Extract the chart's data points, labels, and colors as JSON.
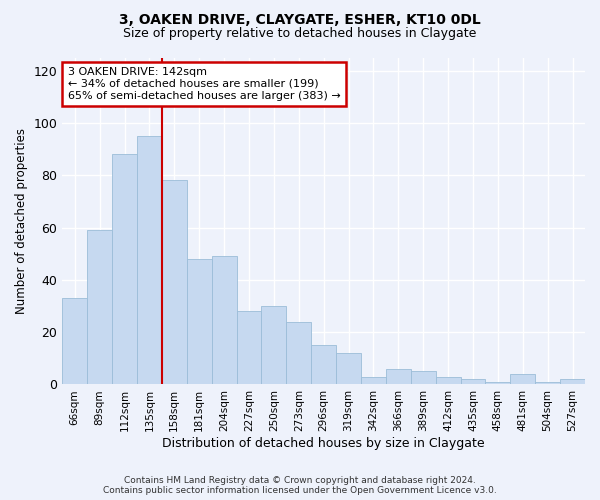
{
  "title": "3, OAKEN DRIVE, CLAYGATE, ESHER, KT10 0DL",
  "subtitle": "Size of property relative to detached houses in Claygate",
  "xlabel": "Distribution of detached houses by size in Claygate",
  "ylabel": "Number of detached properties",
  "categories": [
    "66sqm",
    "89sqm",
    "112sqm",
    "135sqm",
    "158sqm",
    "181sqm",
    "204sqm",
    "227sqm",
    "250sqm",
    "273sqm",
    "296sqm",
    "319sqm",
    "342sqm",
    "366sqm",
    "389sqm",
    "412sqm",
    "435sqm",
    "458sqm",
    "481sqm",
    "504sqm",
    "527sqm"
  ],
  "values": [
    33,
    59,
    88,
    95,
    78,
    48,
    49,
    28,
    30,
    24,
    15,
    12,
    3,
    6,
    5,
    3,
    2,
    1,
    4,
    1,
    2
  ],
  "bar_color": "#c6d9f0",
  "bar_edge_color": "#9bbdd8",
  "red_line_index": 3,
  "annotation_text": "3 OAKEN DRIVE: 142sqm\n← 34% of detached houses are smaller (199)\n65% of semi-detached houses are larger (383) →",
  "annotation_box_color": "#ffffff",
  "annotation_border_color": "#cc0000",
  "ylim": [
    0,
    125
  ],
  "yticks": [
    0,
    20,
    40,
    60,
    80,
    100,
    120
  ],
  "background_color": "#eef2fb",
  "footer_line1": "Contains HM Land Registry data © Crown copyright and database right 2024.",
  "footer_line2": "Contains public sector information licensed under the Open Government Licence v3.0.",
  "red_line_color": "#cc0000",
  "grid_color": "#ffffff",
  "title_fontsize": 10,
  "subtitle_fontsize": 9
}
